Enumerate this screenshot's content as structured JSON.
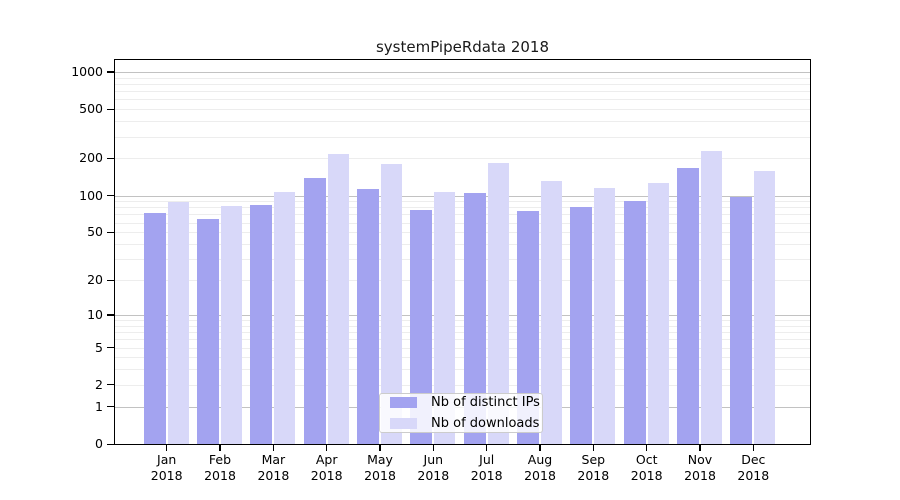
{
  "chart_data": {
    "type": "bar",
    "title": "systemPipeRdata 2018",
    "categories": [
      "Jan",
      "Feb",
      "Mar",
      "Apr",
      "May",
      "Jun",
      "Jul",
      "Aug",
      "Sep",
      "Oct",
      "Nov",
      "Dec"
    ],
    "year_label": "2018",
    "series": [
      {
        "name": "Nb of distinct IPs",
        "color": "#a3a3f0",
        "values": [
          72,
          64,
          83,
          140,
          114,
          76,
          105,
          75,
          80,
          90,
          167,
          97
        ]
      },
      {
        "name": "Nb of downloads",
        "color": "#d8d8f9",
        "values": [
          88,
          82,
          107,
          218,
          180,
          106,
          185,
          132,
          115,
          126,
          230,
          158
        ]
      }
    ],
    "xlabel": "",
    "ylabel": "",
    "yticks": [
      0,
      1,
      2,
      5,
      10,
      20,
      50,
      100,
      200,
      500,
      1000
    ],
    "ylim": [
      0,
      1000
    ],
    "yscale": "pseudo-log (log10(1+x))",
    "grid": "horizontal, minor light + major at powers of 10",
    "legend_position": "bottom-center-inside",
    "colors": {
      "axis": "#000000",
      "grid_major": "#c2c2c2",
      "grid_minor": "#ededed",
      "background": "#ffffff"
    }
  }
}
